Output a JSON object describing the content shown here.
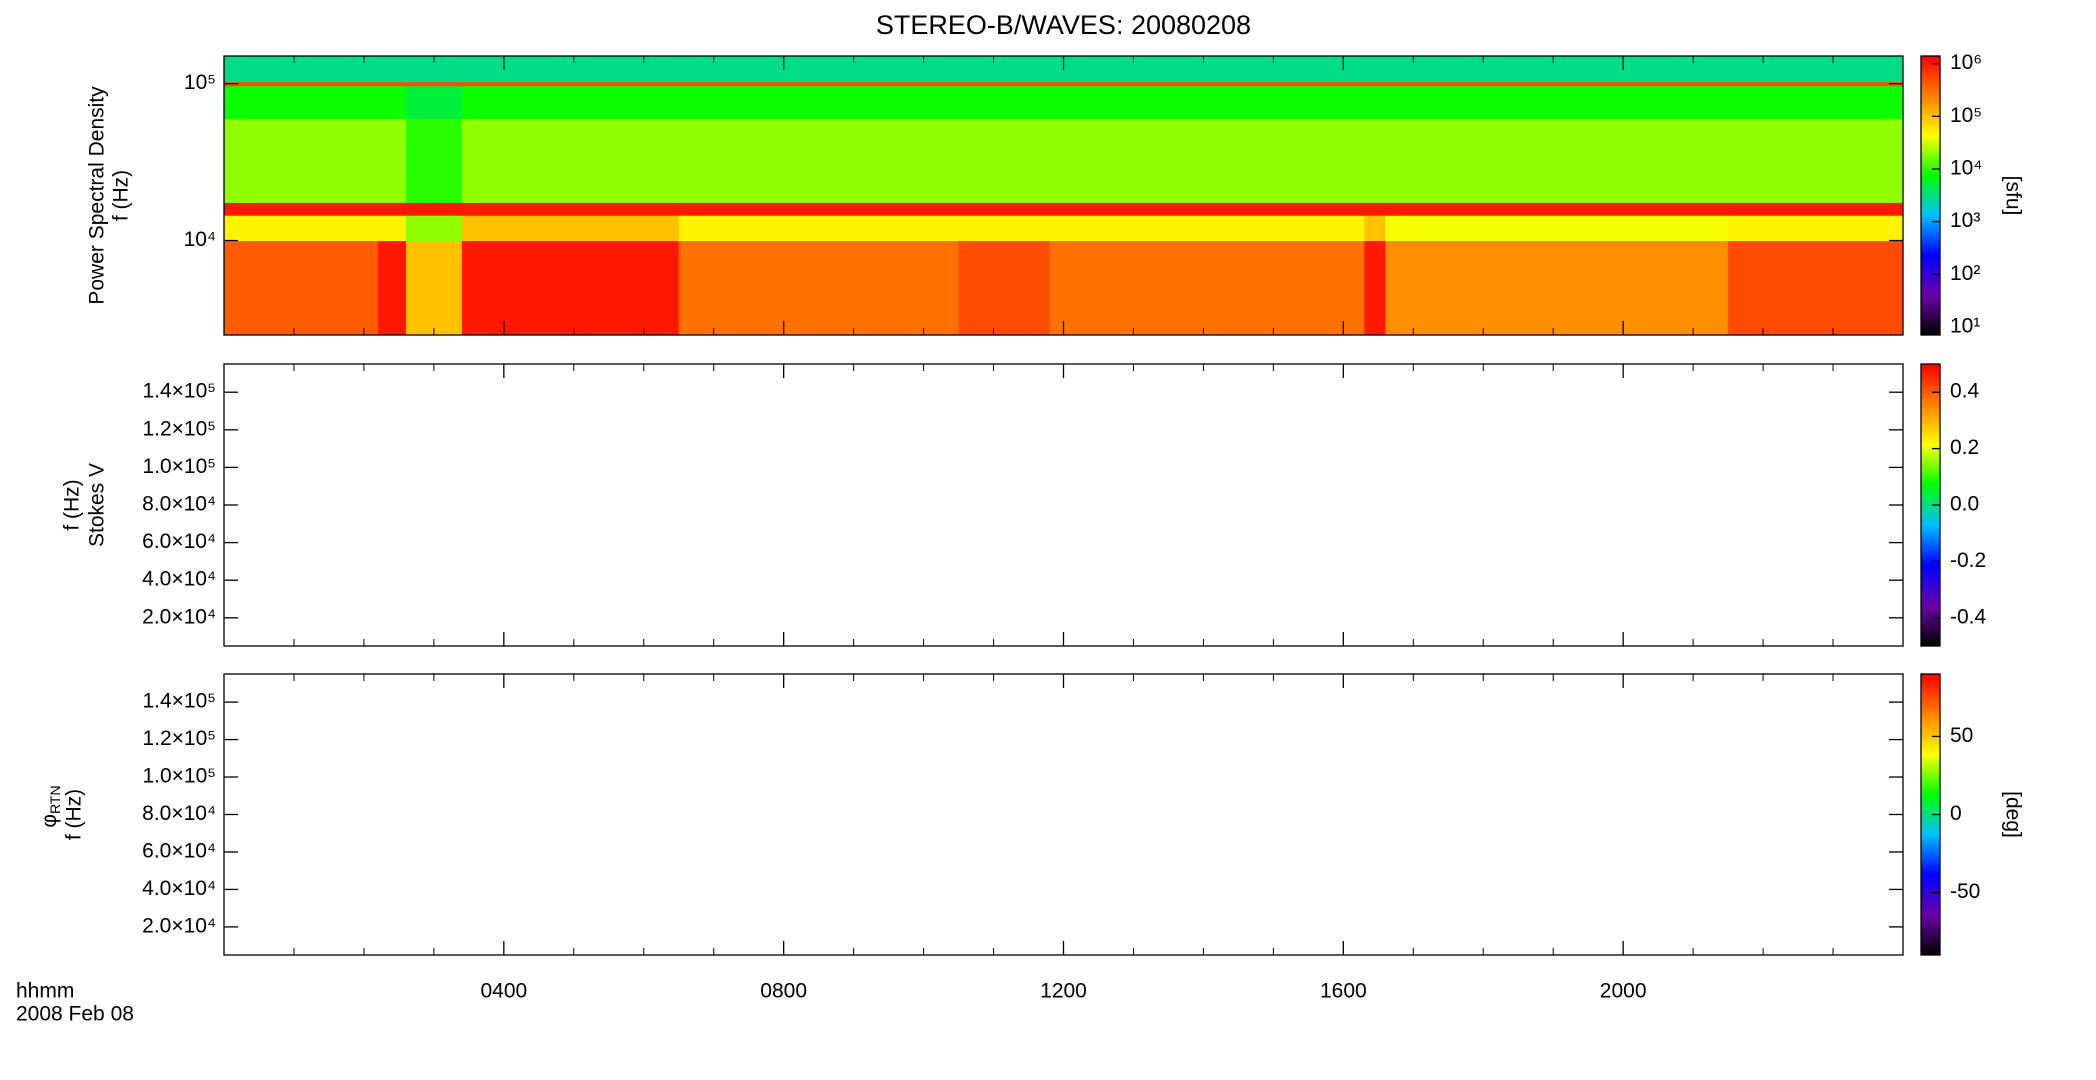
{
  "chart_data": [
    {
      "type": "heatmap",
      "title": "STEREO-B/WAVES: 20080208",
      "ylabel": [
        "Power Spectral Density",
        "f (Hz)"
      ],
      "yscale": "log",
      "ylim": [
        2500,
        150000
      ],
      "yticks": [
        {
          "value": 10000,
          "label": "10⁴"
        },
        {
          "value": 100000,
          "label": "10⁵"
        }
      ],
      "time_bins": [
        0,
        2.2,
        2.6,
        3.4,
        6.5,
        8.0,
        10.5,
        11.8,
        16.3,
        16.6,
        21.5,
        24
      ],
      "freq_bins": [
        2500,
        10000,
        14500,
        17500,
        60000,
        97000,
        103000,
        150000
      ],
      "values": [
        [
          400000,
          1000000,
          100000,
          1000000,
          300000,
          300000,
          500000,
          300000,
          1000000,
          200000,
          500000
        ],
        [
          50000,
          50000,
          20000,
          100000,
          50000,
          50000,
          50000,
          50000,
          100000,
          40000,
          50000
        ],
        [
          1000000,
          1000000,
          1000000,
          1000000,
          1000000,
          1000000,
          1000000,
          1000000,
          1000000,
          1000000,
          1000000
        ],
        [
          20000,
          20000,
          10000,
          20000,
          20000,
          20000,
          20000,
          20000,
          20000,
          20000,
          20000
        ],
        [
          8000,
          8000,
          5000,
          8000,
          8000,
          8000,
          8000,
          8000,
          8000,
          8000,
          8000
        ],
        [
          500000,
          500000,
          500000,
          500000,
          500000,
          500000,
          500000,
          500000,
          500000,
          500000,
          500000
        ],
        [
          3000,
          3000,
          3000,
          3000,
          3000,
          3000,
          3000,
          3000,
          3000,
          3000,
          3000
        ]
      ],
      "colormap": [
        "#000000",
        "#6a00a8",
        "#0000ff",
        "#00bfff",
        "#00ff00",
        "#ffff00",
        "#ff8000",
        "#ff0000"
      ],
      "colorbar": {
        "scale": "log",
        "lim": [
          7,
          1400000
        ],
        "label": "[sfu]",
        "ticks": [
          {
            "value": 10,
            "label": "10¹"
          },
          {
            "value": 100,
            "label": "10²"
          },
          {
            "value": 1000,
            "label": "10³"
          },
          {
            "value": 10000,
            "label": "10⁴"
          },
          {
            "value": 100000,
            "label": "10⁵"
          },
          {
            "value": 1000000,
            "label": "10⁶"
          }
        ]
      }
    },
    {
      "type": "heatmap",
      "ylabel": [
        "Stokes V",
        "f (Hz)"
      ],
      "yscale": "linear",
      "ylim": [
        5000,
        155000
      ],
      "yticks": [
        {
          "value": 20000,
          "label": "2.0×10⁴"
        },
        {
          "value": 40000,
          "label": "4.0×10⁴"
        },
        {
          "value": 60000,
          "label": "6.0×10⁴"
        },
        {
          "value": 80000,
          "label": "8.0×10⁴"
        },
        {
          "value": 100000,
          "label": "1.0×10⁵"
        },
        {
          "value": 120000,
          "label": "1.2×10⁵"
        },
        {
          "value": 140000,
          "label": "1.4×10⁵"
        }
      ],
      "colormap": [
        "#000000",
        "#6a00a8",
        "#0000ff",
        "#00bfff",
        "#00ff00",
        "#ffff00",
        "#ff8000",
        "#ff0000"
      ],
      "colorbar": {
        "scale": "linear",
        "lim": [
          -0.5,
          0.5
        ],
        "ticks": [
          -0.4,
          -0.2,
          {
            "value": 0,
            "label": "0.0"
          },
          0.2,
          0.4
        ]
      }
    },
    {
      "type": "heatmap",
      "ylabel": [
        "φ",
        "RTN",
        "f (Hz)"
      ],
      "yscale": "linear",
      "ylim": [
        5000,
        155000
      ],
      "yticks": [
        {
          "value": 20000,
          "label": "2.0×10⁴"
        },
        {
          "value": 40000,
          "label": "4.0×10⁴"
        },
        {
          "value": 60000,
          "label": "6.0×10⁴"
        },
        {
          "value": 80000,
          "label": "8.0×10⁴"
        },
        {
          "value": 100000,
          "label": "1.0×10⁵"
        },
        {
          "value": 120000,
          "label": "1.2×10⁵"
        },
        {
          "value": 140000,
          "label": "1.4×10⁵"
        }
      ],
      "colormap": [
        "#000000",
        "#6a00a8",
        "#0000ff",
        "#00bfff",
        "#00ff00",
        "#ffff00",
        "#ff8000",
        "#ff0000"
      ],
      "colorbar": {
        "scale": "linear",
        "lim": [
          -90,
          90
        ],
        "label": "[deg]",
        "ticks": [
          -50,
          0,
          50
        ]
      },
      "xlim": [
        0,
        24
      ],
      "xticks": [
        {
          "value": 4,
          "label": "0400"
        },
        {
          "value": 8,
          "label": "0800"
        },
        {
          "value": 12,
          "label": "1200"
        },
        {
          "value": 16,
          "label": "1600"
        },
        {
          "value": 20,
          "label": "2000"
        }
      ],
      "xminorticks": [
        1,
        2,
        3,
        5,
        6,
        7,
        9,
        10,
        11,
        13,
        14,
        15,
        17,
        18,
        19,
        21,
        22,
        23
      ],
      "xlabel": [
        "hhmm",
        "2008 Feb 08"
      ]
    }
  ]
}
